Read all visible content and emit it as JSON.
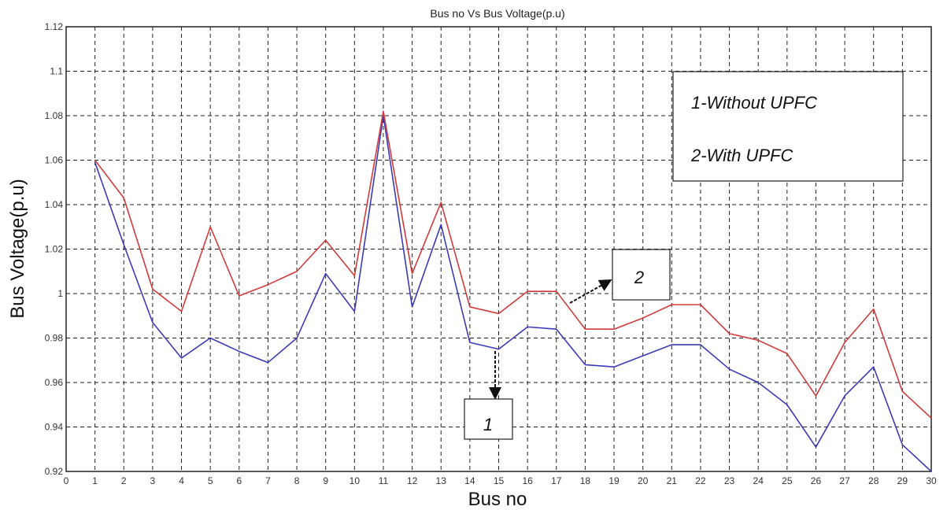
{
  "chart_data": {
    "type": "line",
    "title": "Bus no Vs Bus Voltage(p.u)",
    "xlabel": "Bus no",
    "ylabel": "Bus Voltage(p.u)",
    "xlim": [
      0,
      30
    ],
    "ylim": [
      0.92,
      1.12
    ],
    "x_ticks": [
      0,
      1,
      2,
      3,
      4,
      5,
      6,
      7,
      8,
      9,
      10,
      11,
      12,
      13,
      14,
      15,
      16,
      17,
      18,
      19,
      20,
      21,
      22,
      23,
      24,
      25,
      26,
      27,
      28,
      29,
      30
    ],
    "y_ticks": [
      0.92,
      0.94,
      0.96,
      0.98,
      1.0,
      1.02,
      1.04,
      1.06,
      1.08,
      1.1,
      1.12
    ],
    "y_tick_labels": [
      "0.92",
      "0.94",
      "0.96",
      "0.98",
      "1",
      "1.02",
      "1.04",
      "1.06",
      "1.08",
      "1.1",
      "1.12"
    ],
    "grid": true,
    "grid_style": "dashed",
    "legend_placement": "top-right",
    "legend_entries": [
      "1-Without UPFC",
      "2-With UPFC"
    ],
    "x": [
      1,
      2,
      3,
      4,
      5,
      6,
      7,
      8,
      9,
      10,
      11,
      12,
      13,
      14,
      15,
      16,
      17,
      18,
      19,
      20,
      21,
      22,
      23,
      24,
      25,
      26,
      27,
      28,
      29,
      30
    ],
    "series": [
      {
        "color": "#3b3bb8",
        "values": [
          1.059,
          1.022,
          0.987,
          0.971,
          0.98,
          0.974,
          0.969,
          0.98,
          1.009,
          0.992,
          1.08,
          0.994,
          1.031,
          0.978,
          0.975,
          0.985,
          0.984,
          0.968,
          0.967,
          0.972,
          0.977,
          0.977,
          0.966,
          0.96,
          0.95,
          0.931,
          0.954,
          0.967,
          0.932,
          0.92
        ]
      },
      {
        "color": "#d43a3a",
        "values": [
          1.06,
          1.043,
          1.002,
          0.992,
          1.03,
          0.999,
          1.004,
          1.01,
          1.024,
          1.008,
          1.082,
          1.009,
          1.041,
          0.994,
          0.991,
          1.001,
          1.001,
          0.984,
          0.984,
          0.989,
          0.995,
          0.995,
          0.982,
          0.979,
          0.973,
          0.954,
          0.978,
          0.993,
          0.956,
          0.944
        ]
      }
    ],
    "annotations": [
      {
        "text": "1",
        "x": 15,
        "y": 0.975
      },
      {
        "text": "2",
        "x": 19,
        "y": 1.005
      }
    ]
  }
}
